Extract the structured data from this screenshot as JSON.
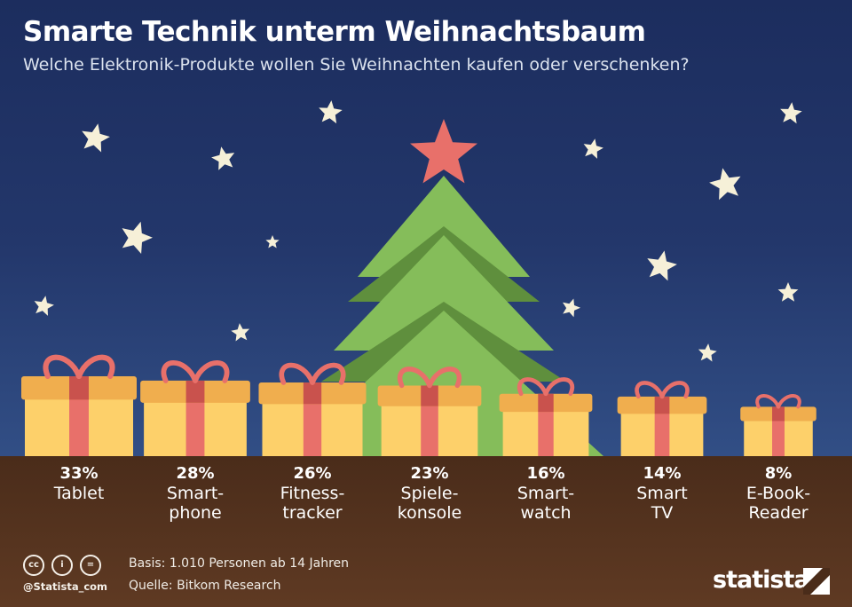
{
  "header": {
    "title": "Smarte Technik unterm Weihnachtsbaum",
    "subtitle": "Welche Elektronik-Produkte wollen Sie Weihnachten kaufen oder verschenken?"
  },
  "chart_data": {
    "type": "bar",
    "title": "Smarte Technik unterm Weihnachtsbaum",
    "subtitle": "Welche Elektronik-Produkte wollen Sie Weihnachten kaufen oder verschenken?",
    "unit": "%",
    "categories": [
      "Tablet",
      "Smart-phone",
      "Fitness-tracker",
      "Spiele-konsole",
      "Smart-watch",
      "Smart TV",
      "E-Book-Reader"
    ],
    "series": [
      {
        "values": [
          33,
          28,
          26,
          23,
          16,
          14,
          8
        ]
      }
    ],
    "labels": [
      {
        "pct": "33%",
        "line1": "Tablet",
        "line2": ""
      },
      {
        "pct": "28%",
        "line1": "Smart-",
        "line2": "phone"
      },
      {
        "pct": "26%",
        "line1": "Fitness-",
        "line2": "tracker"
      },
      {
        "pct": "23%",
        "line1": "Spiele-",
        "line2": "konsole"
      },
      {
        "pct": "16%",
        "line1": "Smart-",
        "line2": "watch"
      },
      {
        "pct": "14%",
        "line1": "Smart",
        "line2": "TV"
      },
      {
        "pct": "8%",
        "line1": "E-Book-",
        "line2": "Reader"
      }
    ]
  },
  "footer": {
    "basis": "Basis: 1.010 Personen ab 14 Jahren",
    "source": "Quelle: Bitkom Research",
    "handle": "@Statista_com",
    "brand": "statista",
    "license_icons": [
      "cc-icon",
      "by-icon",
      "nd-icon"
    ],
    "license_glyphs": [
      "cc",
      "i",
      "="
    ]
  },
  "colors": {
    "sky_top": "#1c2d5e",
    "sky_bottom": "#324f86",
    "ground": "#4a2c1a",
    "gift": "#fdd06a",
    "gift_lid": "#f0ae4e",
    "ribbon": "#e8706a",
    "ribbon_dark": "#c9524d",
    "tree_light": "#85bd5a",
    "tree_dark": "#5f8f3d",
    "star": "#f6f0d8",
    "tree_star": "#e8706a"
  }
}
